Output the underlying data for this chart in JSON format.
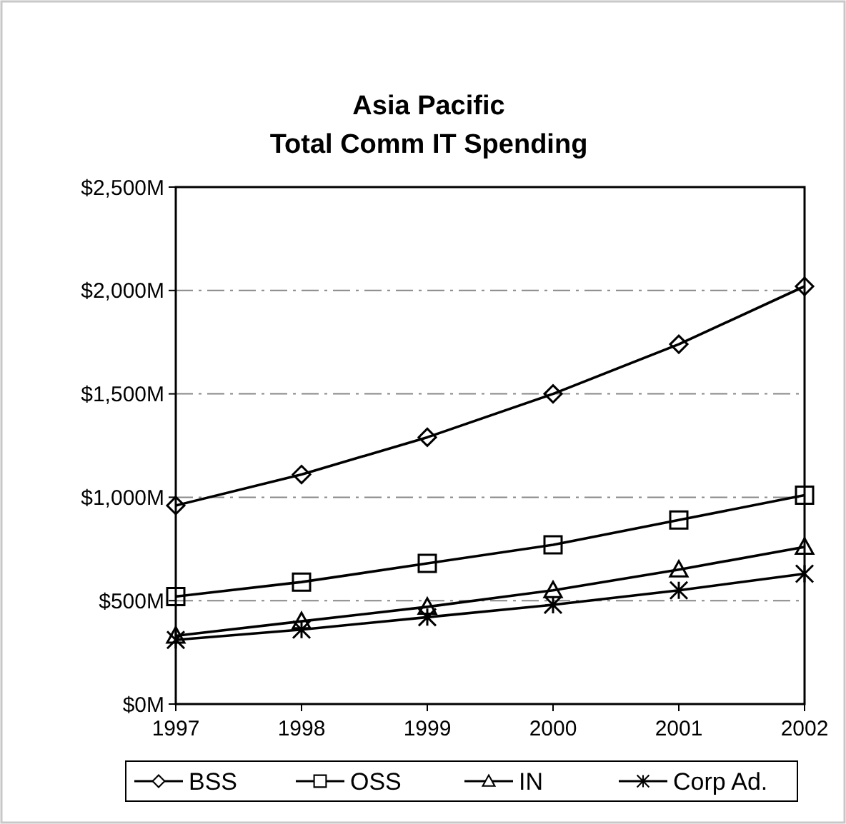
{
  "chart_data": {
    "type": "line",
    "title": "Asia Pacific\nTotal Comm  IT Spending",
    "categories": [
      "1997",
      "1998",
      "1999",
      "2000",
      "2001",
      "2002"
    ],
    "series": [
      {
        "name": "BSS",
        "color": "#000000",
        "marker": "diamond",
        "values": [
          960,
          1110,
          1290,
          1500,
          1740,
          2020
        ]
      },
      {
        "name": "OSS",
        "color": "#000000",
        "marker": "square",
        "values": [
          520,
          590,
          680,
          770,
          890,
          1010
        ]
      },
      {
        "name": "IN",
        "color": "#000000",
        "marker": "triangle",
        "values": [
          330,
          400,
          470,
          550,
          650,
          760
        ]
      },
      {
        "name": "Corp Ad.",
        "color": "#000000",
        "marker": "cross",
        "values": [
          310,
          360,
          420,
          480,
          550,
          630
        ]
      }
    ],
    "ylim": [
      0,
      2500
    ],
    "yticks": [
      {
        "value": 0,
        "label": "$0M"
      },
      {
        "value": 500,
        "label": "$500M"
      },
      {
        "value": 1000,
        "label": "$1,000M"
      },
      {
        "value": 1500,
        "label": "$1,500M"
      },
      {
        "value": 2000,
        "label": "$2,000M"
      },
      {
        "value": 2500,
        "label": "$2,500M"
      }
    ],
    "grid": "y",
    "legend": "bottom",
    "line_style": "solid"
  }
}
